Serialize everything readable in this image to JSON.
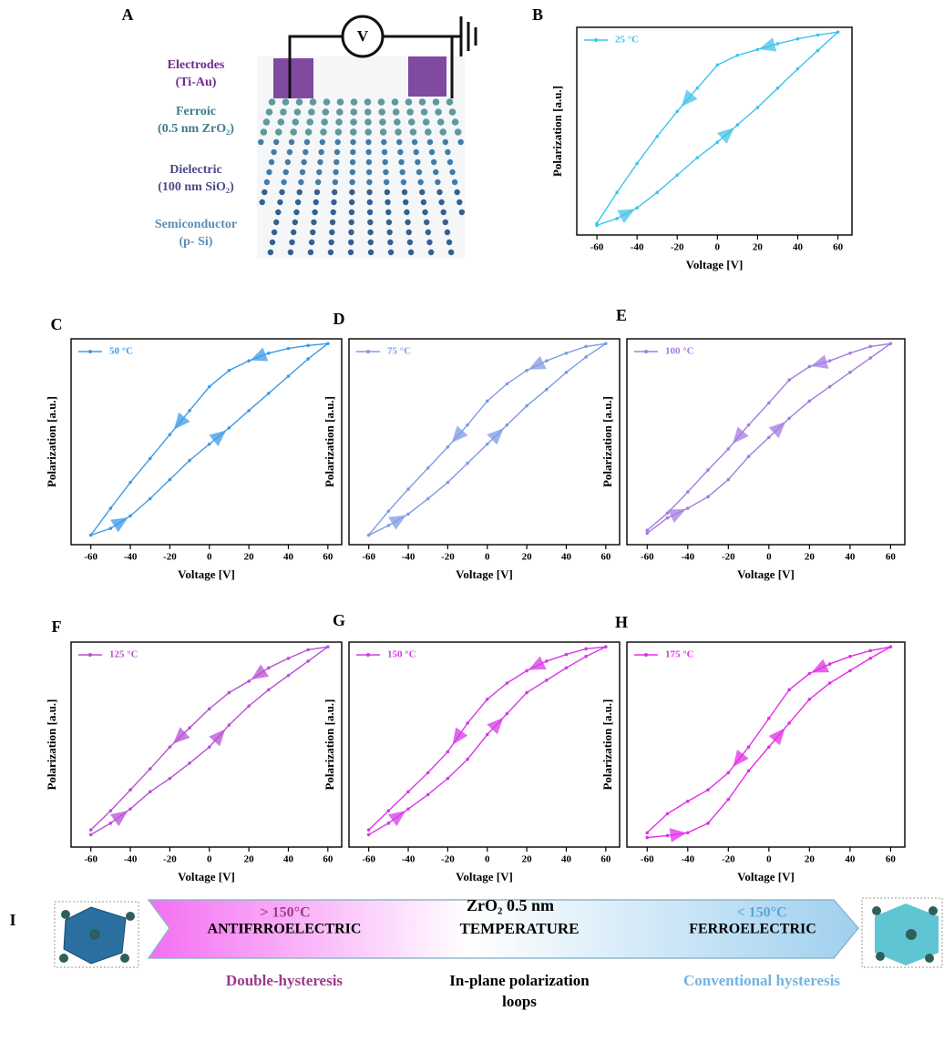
{
  "panel_a": {
    "label": "A",
    "voltmeter": "V",
    "layers": [
      {
        "name": "Electrodes",
        "detail": "(Ti-Au)"
      },
      {
        "name": "Ferroic",
        "detail": "(0.5 nm ZrO₂)"
      },
      {
        "name": "Dielectric",
        "detail": "(100 nm SiO₂)"
      },
      {
        "name": "Semiconductor",
        "detail": "(p- Si)"
      }
    ]
  },
  "chart_data": [
    {
      "type": "line",
      "label": "B",
      "xlabel": "Voltage [V]",
      "ylabel": "Polarization [a.u.]",
      "legend": "upper left",
      "x": [
        -60,
        -50,
        -40,
        -30,
        -20,
        -10,
        0,
        10,
        20,
        30,
        40,
        50,
        60,
        50,
        40,
        30,
        20,
        10,
        0,
        -10,
        -20,
        -30,
        -40,
        -50,
        -60
      ],
      "series": [
        {
          "name": "25 °C",
          "color": "#3fc3ea",
          "values": [
            -1,
            -0.93,
            -0.82,
            -0.66,
            -0.48,
            -0.3,
            -0.14,
            0.04,
            0.22,
            0.42,
            0.62,
            0.81,
            1,
            0.97,
            0.93,
            0.88,
            0.82,
            0.76,
            0.66,
            0.42,
            0.18,
            -0.08,
            -0.36,
            -0.66,
            -0.98
          ]
        }
      ],
      "xlim": [
        -70,
        67
      ],
      "ylim": [
        -1.1,
        1.05
      ],
      "xticks": [
        -60,
        -40,
        -20,
        0,
        20,
        40,
        60
      ]
    },
    {
      "type": "line",
      "label": "C",
      "xlabel": "Voltage [V]",
      "ylabel": "Polarization [a.u.]",
      "legend": "upper left",
      "x": [
        -60,
        -50,
        -40,
        -30,
        -20,
        -10,
        0,
        10,
        20,
        30,
        40,
        50,
        60,
        50,
        40,
        30,
        20,
        10,
        0,
        -10,
        -20,
        -30,
        -40,
        -50,
        -60
      ],
      "series": [
        {
          "name": "50 °C",
          "color": "#3c9be8",
          "values": [
            -1,
            -0.93,
            -0.8,
            -0.62,
            -0.42,
            -0.22,
            -0.05,
            0.12,
            0.3,
            0.48,
            0.66,
            0.84,
            1,
            0.98,
            0.95,
            0.9,
            0.82,
            0.72,
            0.55,
            0.3,
            0.05,
            -0.2,
            -0.45,
            -0.72,
            -1
          ]
        }
      ],
      "xlim": [
        -70,
        67
      ],
      "ylim": [
        -1.1,
        1.05
      ],
      "xticks": [
        -60,
        -40,
        -20,
        0,
        20,
        40,
        60
      ]
    },
    {
      "type": "line",
      "label": "D",
      "xlabel": "Voltage [V]",
      "ylabel": "Polarization [a.u.]",
      "legend": "upper left",
      "x": [
        -60,
        -50,
        -40,
        -30,
        -20,
        -10,
        0,
        10,
        20,
        30,
        40,
        50,
        60,
        50,
        40,
        30,
        20,
        10,
        0,
        -10,
        -20,
        -30,
        -40,
        -50,
        -60
      ],
      "series": [
        {
          "name": "75 °C",
          "color": "#7f9be6",
          "values": [
            -1,
            -0.9,
            -0.78,
            -0.62,
            -0.45,
            -0.25,
            -0.05,
            0.15,
            0.35,
            0.52,
            0.7,
            0.86,
            1,
            0.97,
            0.9,
            0.82,
            0.72,
            0.58,
            0.4,
            0.15,
            -0.08,
            -0.3,
            -0.52,
            -0.75,
            -1
          ]
        }
      ],
      "xlim": [
        -70,
        67
      ],
      "ylim": [
        -1.1,
        1.05
      ],
      "xticks": [
        -60,
        -40,
        -20,
        0,
        20,
        40,
        60
      ]
    },
    {
      "type": "line",
      "label": "E",
      "xlabel": "Voltage [V]",
      "ylabel": "Polarization [a.u.]",
      "legend": "upper left",
      "x": [
        -60,
        -50,
        -40,
        -30,
        -20,
        -10,
        0,
        10,
        20,
        30,
        40,
        50,
        60,
        50,
        40,
        30,
        20,
        10,
        0,
        -10,
        -20,
        -30,
        -40,
        -50,
        -60
      ],
      "series": [
        {
          "name": "100 °C",
          "color": "#a47be0",
          "values": [
            -0.98,
            -0.82,
            -0.72,
            -0.6,
            -0.42,
            -0.18,
            0.02,
            0.22,
            0.4,
            0.55,
            0.7,
            0.85,
            1,
            0.97,
            0.9,
            0.82,
            0.76,
            0.62,
            0.38,
            0.15,
            -0.1,
            -0.32,
            -0.55,
            -0.77,
            -0.95
          ]
        }
      ],
      "xlim": [
        -70,
        67
      ],
      "ylim": [
        -1.1,
        1.05
      ],
      "xticks": [
        -60,
        -40,
        -20,
        0,
        20,
        40,
        60
      ]
    },
    {
      "type": "line",
      "label": "F",
      "xlabel": "Voltage [V]",
      "ylabel": "Polarization [a.u.]",
      "legend": "upper left",
      "x": [
        -60,
        -50,
        -40,
        -30,
        -20,
        -10,
        0,
        10,
        20,
        30,
        40,
        50,
        60,
        50,
        40,
        30,
        20,
        10,
        0,
        -10,
        -20,
        -30,
        -40,
        -50,
        -60
      ],
      "series": [
        {
          "name": "125 °C",
          "color": "#b84fd6",
          "values": [
            -0.97,
            -0.85,
            -0.7,
            -0.52,
            -0.38,
            -0.22,
            -0.05,
            0.18,
            0.38,
            0.55,
            0.7,
            0.85,
            1,
            0.97,
            0.88,
            0.78,
            0.64,
            0.52,
            0.35,
            0.15,
            -0.05,
            -0.28,
            -0.5,
            -0.72,
            -0.92
          ]
        }
      ],
      "xlim": [
        -70,
        67
      ],
      "ylim": [
        -1.1,
        1.05
      ],
      "xticks": [
        -60,
        -40,
        -20,
        0,
        20,
        40,
        60
      ]
    },
    {
      "type": "line",
      "label": "G",
      "xlabel": "Voltage [V]",
      "ylabel": "Polarization [a.u.]",
      "legend": "upper left",
      "x": [
        -60,
        -50,
        -40,
        -30,
        -20,
        -10,
        0,
        10,
        20,
        30,
        40,
        50,
        60,
        50,
        40,
        30,
        20,
        10,
        0,
        -10,
        -20,
        -30,
        -40,
        -50,
        -60
      ],
      "series": [
        {
          "name": "150 °C",
          "color": "#d63ae6",
          "values": [
            -0.97,
            -0.85,
            -0.7,
            -0.55,
            -0.38,
            -0.18,
            0.08,
            0.3,
            0.52,
            0.65,
            0.78,
            0.9,
            1,
            0.98,
            0.92,
            0.85,
            0.75,
            0.62,
            0.45,
            0.2,
            -0.1,
            -0.32,
            -0.52,
            -0.72,
            -0.92
          ]
        }
      ],
      "xlim": [
        -70,
        67
      ],
      "ylim": [
        -1.1,
        1.05
      ],
      "xticks": [
        -60,
        -40,
        -20,
        0,
        20,
        40,
        60
      ]
    },
    {
      "type": "line",
      "label": "H",
      "xlabel": "Voltage [V]",
      "ylabel": "Polarization [a.u.]",
      "legend": "upper left",
      "x": [
        -60,
        -50,
        -40,
        -30,
        -20,
        -10,
        0,
        10,
        20,
        30,
        40,
        50,
        60,
        50,
        40,
        30,
        20,
        10,
        0,
        -10,
        -20,
        -30,
        -40,
        -50,
        -60
      ],
      "series": [
        {
          "name": "175 °C",
          "color": "#e22ee8",
          "values": [
            -1,
            -0.98,
            -0.95,
            -0.85,
            -0.6,
            -0.3,
            -0.05,
            0.2,
            0.45,
            0.62,
            0.75,
            0.88,
            1,
            0.96,
            0.9,
            0.82,
            0.72,
            0.55,
            0.25,
            -0.05,
            -0.32,
            -0.5,
            -0.62,
            -0.75,
            -0.95
          ]
        }
      ],
      "xlim": [
        -70,
        67
      ],
      "ylim": [
        -1.1,
        1.05
      ],
      "xticks": [
        -60,
        -40,
        -20,
        0,
        20,
        40,
        60
      ]
    }
  ],
  "panel_i": {
    "label": "I",
    "title": "ZrO₂ 0.5 nm",
    "left": {
      "temperature": "> 150°C",
      "phase": "ANTIFRROELECTRIC",
      "loop": "Double-hysteresis"
    },
    "middle": {
      "axis": "TEMPERATURE",
      "caption": [
        "In-plane polarization",
        "loops"
      ]
    },
    "right": {
      "temperature": "< 150°C",
      "phase": "FERROELECTRIC",
      "loop": "Conventional hysteresis"
    }
  }
}
